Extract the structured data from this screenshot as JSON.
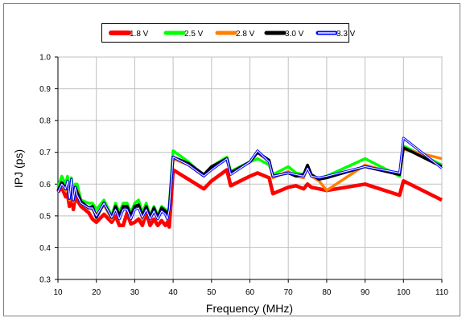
{
  "chart_data": {
    "type": "line",
    "title": "",
    "xlabel": "Frequency (MHz)",
    "ylabel": "IPJ (ps)",
    "xlim": [
      10,
      110
    ],
    "ylim": [
      0.3,
      1.0
    ],
    "xticks": [
      10,
      20,
      30,
      40,
      50,
      60,
      70,
      80,
      90,
      100,
      110
    ],
    "xtick_labels": [
      "10",
      "20",
      "30",
      "40",
      "50",
      "60",
      "70",
      "80",
      "90",
      "100",
      "110"
    ],
    "yticks": [
      0.3,
      0.4,
      0.5,
      0.6,
      0.7,
      0.8,
      0.9,
      1.0
    ],
    "ytick_labels": [
      "0.3",
      "0.4",
      "0.5",
      "0.6",
      "0.7",
      "0.8",
      "0.9",
      "1.0"
    ],
    "grid": true,
    "legend_position": "top",
    "series": [
      {
        "name": "1.8 V",
        "color": "#ff0000",
        "x": [
          10,
          11,
          12,
          12.5,
          13,
          13.5,
          14,
          14.5,
          15,
          16,
          18,
          19,
          20,
          22,
          24,
          25,
          26,
          27,
          28,
          29,
          30,
          31,
          32,
          33,
          34,
          35,
          36,
          37,
          38,
          38.5,
          39,
          40,
          44,
          48,
          50,
          54,
          55,
          60,
          62,
          65,
          66,
          70,
          72,
          74,
          75,
          76,
          78,
          80,
          90,
          99,
          100,
          110
        ],
        "y": [
          0.575,
          0.59,
          0.56,
          0.57,
          0.53,
          0.59,
          0.52,
          0.56,
          0.55,
          0.53,
          0.51,
          0.49,
          0.48,
          0.505,
          0.48,
          0.5,
          0.47,
          0.47,
          0.51,
          0.475,
          0.48,
          0.49,
          0.47,
          0.51,
          0.47,
          0.49,
          0.47,
          0.485,
          0.47,
          0.48,
          0.465,
          0.645,
          0.615,
          0.585,
          0.61,
          0.645,
          0.595,
          0.625,
          0.635,
          0.62,
          0.57,
          0.59,
          0.595,
          0.585,
          0.6,
          0.59,
          0.585,
          0.58,
          0.6,
          0.565,
          0.61,
          0.55
        ]
      },
      {
        "name": "2.5 V",
        "color": "#00ff00",
        "x": [
          10,
          11,
          12,
          12.5,
          13,
          13.5,
          14,
          14.5,
          15,
          16,
          18,
          19,
          20,
          22,
          24,
          25,
          26,
          27,
          28,
          29,
          30,
          31,
          32,
          33,
          34,
          35,
          36,
          37,
          38,
          38.5,
          39,
          40,
          44,
          48,
          50,
          54,
          55,
          60,
          62,
          65,
          66,
          70,
          72,
          74,
          75,
          76,
          78,
          80,
          90,
          99,
          100,
          110
        ],
        "y": [
          0.59,
          0.625,
          0.6,
          0.625,
          0.57,
          0.62,
          0.56,
          0.6,
          0.6,
          0.55,
          0.54,
          0.54,
          0.52,
          0.55,
          0.5,
          0.54,
          0.51,
          0.54,
          0.54,
          0.51,
          0.54,
          0.55,
          0.51,
          0.54,
          0.5,
          0.53,
          0.5,
          0.53,
          0.52,
          0.5,
          0.53,
          0.705,
          0.67,
          0.625,
          0.655,
          0.685,
          0.64,
          0.67,
          0.68,
          0.66,
          0.63,
          0.655,
          0.635,
          0.63,
          0.655,
          0.625,
          0.615,
          0.625,
          0.68,
          0.625,
          0.72,
          0.66
        ]
      },
      {
        "name": "2.8 V",
        "color": "#ff7f00",
        "x": [
          10,
          11,
          12,
          12.5,
          13,
          13.5,
          14,
          14.5,
          15,
          16,
          18,
          19,
          20,
          22,
          24,
          25,
          26,
          27,
          28,
          29,
          30,
          31,
          32,
          33,
          34,
          35,
          36,
          37,
          38,
          38.5,
          39,
          40,
          44,
          48,
          50,
          54,
          55,
          60,
          62,
          65,
          66,
          70,
          72,
          74,
          75,
          76,
          78,
          80,
          90,
          99,
          100,
          110
        ],
        "y": [
          0.58,
          0.6,
          0.58,
          0.6,
          0.55,
          0.605,
          0.545,
          0.585,
          0.58,
          0.54,
          0.525,
          0.52,
          0.505,
          0.535,
          0.49,
          0.525,
          0.49,
          0.525,
          0.525,
          0.49,
          0.525,
          0.535,
          0.49,
          0.525,
          0.49,
          0.515,
          0.49,
          0.515,
          0.51,
          0.49,
          0.52,
          0.68,
          0.66,
          0.625,
          0.65,
          0.68,
          0.635,
          0.67,
          0.7,
          0.67,
          0.62,
          0.64,
          0.625,
          0.62,
          0.655,
          0.625,
          0.61,
          0.58,
          0.66,
          0.63,
          0.71,
          0.68
        ]
      },
      {
        "name": "3.0 V",
        "color": "#000000",
        "x": [
          10,
          11,
          12,
          12.5,
          13,
          13.5,
          14,
          14.5,
          15,
          16,
          18,
          19,
          20,
          22,
          24,
          25,
          26,
          27,
          28,
          29,
          30,
          31,
          32,
          33,
          34,
          35,
          36,
          37,
          38,
          38.5,
          39,
          40,
          44,
          48,
          50,
          54,
          55,
          60,
          62,
          65,
          66,
          70,
          72,
          74,
          75,
          76,
          78,
          80,
          90,
          99,
          100,
          110
        ],
        "y": [
          0.58,
          0.605,
          0.585,
          0.6,
          0.555,
          0.61,
          0.55,
          0.59,
          0.575,
          0.545,
          0.525,
          0.53,
          0.495,
          0.54,
          0.495,
          0.53,
          0.5,
          0.53,
          0.53,
          0.5,
          0.53,
          0.535,
          0.5,
          0.53,
          0.495,
          0.525,
          0.495,
          0.525,
          0.515,
          0.495,
          0.525,
          0.685,
          0.665,
          0.63,
          0.655,
          0.68,
          0.635,
          0.67,
          0.7,
          0.675,
          0.625,
          0.635,
          0.625,
          0.63,
          0.66,
          0.63,
          0.615,
          0.62,
          0.655,
          0.63,
          0.715,
          0.655
        ]
      },
      {
        "name": "3.3 V",
        "color": "#0000ff",
        "x": [
          10,
          11,
          12,
          12.5,
          13,
          13.5,
          14,
          14.5,
          15,
          16,
          18,
          19,
          20,
          22,
          24,
          25,
          26,
          27,
          28,
          29,
          30,
          31,
          32,
          33,
          34,
          35,
          36,
          37,
          38,
          38.5,
          39,
          40,
          44,
          48,
          50,
          54,
          55,
          60,
          62,
          65,
          66,
          70,
          72,
          74,
          75,
          76,
          78,
          80,
          90,
          99,
          100,
          110
        ],
        "y": [
          0.575,
          0.6,
          0.585,
          0.61,
          0.555,
          0.615,
          0.55,
          0.59,
          0.565,
          0.54,
          0.525,
          0.525,
          0.5,
          0.54,
          0.495,
          0.52,
          0.49,
          0.52,
          0.52,
          0.49,
          0.52,
          0.525,
          0.495,
          0.52,
          0.49,
          0.515,
          0.49,
          0.515,
          0.505,
          0.49,
          0.52,
          0.685,
          0.66,
          0.625,
          0.645,
          0.68,
          0.63,
          0.67,
          0.705,
          0.67,
          0.625,
          0.635,
          0.63,
          0.625,
          0.65,
          0.625,
          0.62,
          0.625,
          0.655,
          0.635,
          0.745,
          0.65
        ]
      }
    ]
  }
}
